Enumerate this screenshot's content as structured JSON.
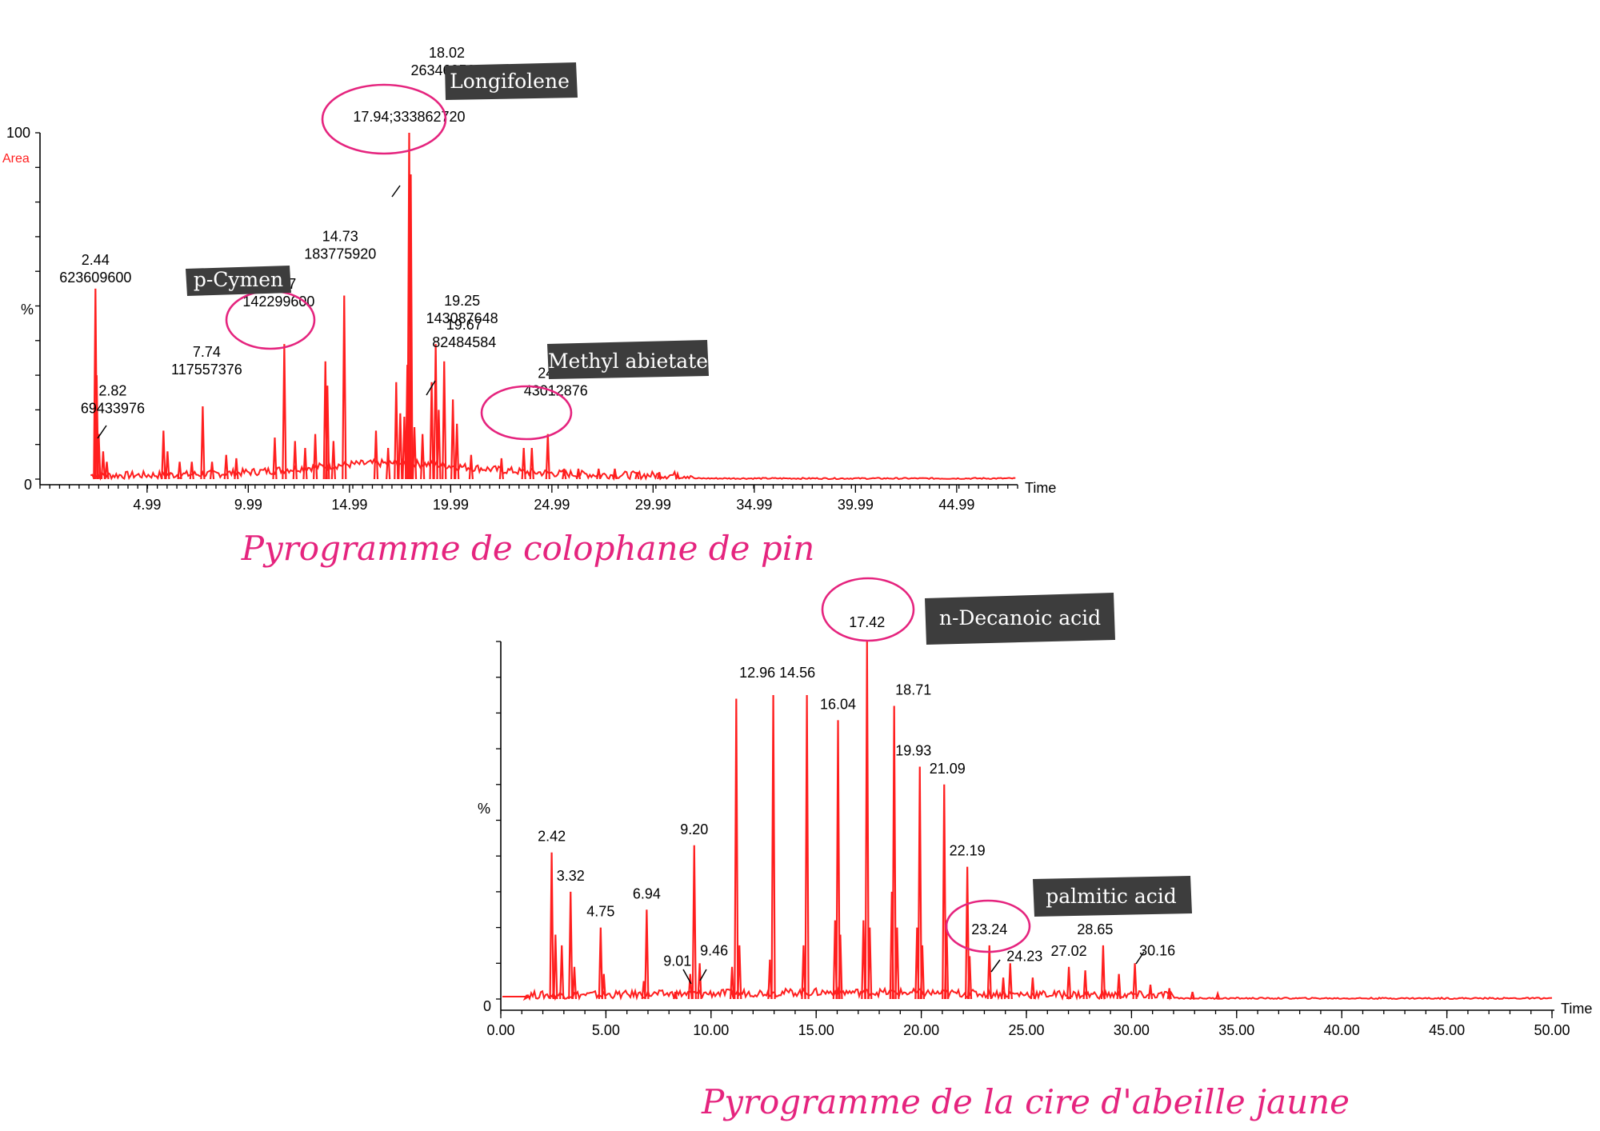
{
  "colors": {
    "trace": "#ff1e1e",
    "highlight": "#e5247e",
    "tag_bg": "#3d3d3d",
    "tag_text": "#ffffff",
    "axis": "#000000"
  },
  "chart_data": [
    {
      "type": "line",
      "caption": "Pyrogramme de colophane de pin",
      "ylabel_top": "100",
      "ylabel_unit": "Area",
      "ylabel_mid": "%",
      "y_zero_label": "0",
      "xlabel": "Time",
      "xlim": [
        -0.3,
        48.0
      ],
      "ylim": [
        0,
        100
      ],
      "x_ticks": [
        "4.99",
        "9.99",
        "14.99",
        "19.99",
        "24.99",
        "29.99",
        "34.99",
        "39.99",
        "44.99"
      ],
      "peaks": [
        {
          "x": 2.44,
          "y": 55,
          "rt": "2.44",
          "area": "623609600"
        },
        {
          "x": 2.82,
          "y": 8,
          "rt": "2.82",
          "area": "69433976"
        },
        {
          "x": 7.74,
          "y": 21,
          "rt": "7.74",
          "area": "117557376"
        },
        {
          "x": 11.77,
          "y": 39,
          "rt": "11.77",
          "area": "142299600"
        },
        {
          "x": 14.73,
          "y": 53,
          "rt": "14.73",
          "area": "183775920"
        },
        {
          "x": 17.94,
          "y": 100,
          "rt": "17.94;333862720",
          "area": ""
        },
        {
          "x": 18.02,
          "y": 88,
          "rt": "18.02",
          "area": "263460560"
        },
        {
          "x": 19.25,
          "y": 39,
          "rt": "19.25",
          "area": "143087648"
        },
        {
          "x": 19.67,
          "y": 34,
          "rt": "19.67",
          "area": "82484584"
        },
        {
          "x": 24.79,
          "y": 13,
          "rt": "24.79",
          "area": "43012876"
        }
      ],
      "minor_peaks": [
        {
          "x": 2.5,
          "y": 30
        },
        {
          "x": 2.6,
          "y": 13
        },
        {
          "x": 3.0,
          "y": 5
        },
        {
          "x": 5.8,
          "y": 14
        },
        {
          "x": 6.0,
          "y": 8
        },
        {
          "x": 6.6,
          "y": 5
        },
        {
          "x": 7.2,
          "y": 5
        },
        {
          "x": 8.2,
          "y": 5
        },
        {
          "x": 8.9,
          "y": 7
        },
        {
          "x": 9.4,
          "y": 6
        },
        {
          "x": 11.3,
          "y": 12
        },
        {
          "x": 12.3,
          "y": 11
        },
        {
          "x": 12.8,
          "y": 9
        },
        {
          "x": 13.3,
          "y": 13
        },
        {
          "x": 13.8,
          "y": 34
        },
        {
          "x": 13.9,
          "y": 27
        },
        {
          "x": 14.2,
          "y": 11
        },
        {
          "x": 16.3,
          "y": 14
        },
        {
          "x": 16.9,
          "y": 9
        },
        {
          "x": 17.3,
          "y": 28
        },
        {
          "x": 17.5,
          "y": 19
        },
        {
          "x": 17.7,
          "y": 18
        },
        {
          "x": 17.85,
          "y": 33
        },
        {
          "x": 18.2,
          "y": 15
        },
        {
          "x": 18.6,
          "y": 13
        },
        {
          "x": 19.05,
          "y": 28
        },
        {
          "x": 19.4,
          "y": 20
        },
        {
          "x": 20.1,
          "y": 23
        },
        {
          "x": 20.3,
          "y": 16
        },
        {
          "x": 21.0,
          "y": 7
        },
        {
          "x": 22.5,
          "y": 6
        },
        {
          "x": 23.6,
          "y": 9
        },
        {
          "x": 24.0,
          "y": 9
        },
        {
          "x": 25.6,
          "y": 3
        },
        {
          "x": 26.3,
          "y": 3
        },
        {
          "x": 27.3,
          "y": 3
        },
        {
          "x": 28.1,
          "y": 3
        },
        {
          "x": 29.2,
          "y": 2
        },
        {
          "x": 30.3,
          "y": 2
        },
        {
          "x": 31.2,
          "y": 1.5
        }
      ],
      "tags": [
        "p-Cymen",
        "Longifolene",
        "Methyl abietate"
      ]
    },
    {
      "type": "line",
      "caption": "Pyrogramme de la cire d'abeille jaune",
      "ylabel_mid": "%",
      "y_zero_label": "0",
      "xlabel": "Time",
      "xlim": [
        0,
        50
      ],
      "ylim": [
        0,
        100
      ],
      "x_ticks": [
        "0.00",
        "5.00",
        "10.00",
        "15.00",
        "20.00",
        "25.00",
        "30.00",
        "35.00",
        "40.00",
        "45.00",
        "50.00"
      ],
      "peaks": [
        {
          "x": 2.42,
          "y": 41,
          "rt": "2.42"
        },
        {
          "x": 3.32,
          "y": 30,
          "rt": "3.32"
        },
        {
          "x": 4.75,
          "y": 20,
          "rt": "4.75"
        },
        {
          "x": 6.94,
          "y": 25,
          "rt": "6.94"
        },
        {
          "x": 9.01,
          "y": 7,
          "rt": "9.01"
        },
        {
          "x": 9.2,
          "y": 43,
          "rt": "9.20"
        },
        {
          "x": 9.46,
          "y": 10,
          "rt": "9.46"
        },
        {
          "x": 12.96,
          "y": 85,
          "rt": "12.96"
        },
        {
          "x": 14.56,
          "y": 85,
          "rt": "14.56"
        },
        {
          "x": 16.04,
          "y": 78,
          "rt": "16.04"
        },
        {
          "x": 17.42,
          "y": 100,
          "rt": "17.42"
        },
        {
          "x": 18.71,
          "y": 82,
          "rt": "18.71"
        },
        {
          "x": 19.93,
          "y": 65,
          "rt": "19.93"
        },
        {
          "x": 21.09,
          "y": 60,
          "rt": "21.09"
        },
        {
          "x": 22.19,
          "y": 37,
          "rt": "22.19"
        },
        {
          "x": 23.24,
          "y": 15,
          "rt": "23.24"
        },
        {
          "x": 24.23,
          "y": 10,
          "rt": "24.23"
        },
        {
          "x": 27.02,
          "y": 9,
          "rt": "27.02"
        },
        {
          "x": 28.65,
          "y": 15,
          "rt": "28.65"
        },
        {
          "x": 30.16,
          "y": 10,
          "rt": "30.16"
        }
      ],
      "minor_peaks": [
        {
          "x": 2.6,
          "y": 18
        },
        {
          "x": 2.9,
          "y": 15
        },
        {
          "x": 3.5,
          "y": 9
        },
        {
          "x": 4.9,
          "y": 7
        },
        {
          "x": 6.8,
          "y": 5
        },
        {
          "x": 8.3,
          "y": 2
        },
        {
          "x": 11.0,
          "y": 9
        },
        {
          "x": 11.2,
          "y": 84
        },
        {
          "x": 11.35,
          "y": 15
        },
        {
          "x": 12.8,
          "y": 11
        },
        {
          "x": 14.4,
          "y": 15
        },
        {
          "x": 15.9,
          "y": 22
        },
        {
          "x": 16.15,
          "y": 18
        },
        {
          "x": 17.25,
          "y": 22
        },
        {
          "x": 17.55,
          "y": 20
        },
        {
          "x": 18.6,
          "y": 30
        },
        {
          "x": 18.85,
          "y": 20
        },
        {
          "x": 19.8,
          "y": 20
        },
        {
          "x": 20.05,
          "y": 15
        },
        {
          "x": 21.2,
          "y": 22
        },
        {
          "x": 22.3,
          "y": 12
        },
        {
          "x": 23.9,
          "y": 6
        },
        {
          "x": 25.3,
          "y": 6
        },
        {
          "x": 27.8,
          "y": 8
        },
        {
          "x": 29.4,
          "y": 7
        },
        {
          "x": 30.9,
          "y": 4
        },
        {
          "x": 31.8,
          "y": 3
        },
        {
          "x": 32.9,
          "y": 2
        },
        {
          "x": 34.1,
          "y": 1.5
        }
      ],
      "tags": [
        "n-Decanoic acid",
        "palmitic acid"
      ]
    }
  ]
}
